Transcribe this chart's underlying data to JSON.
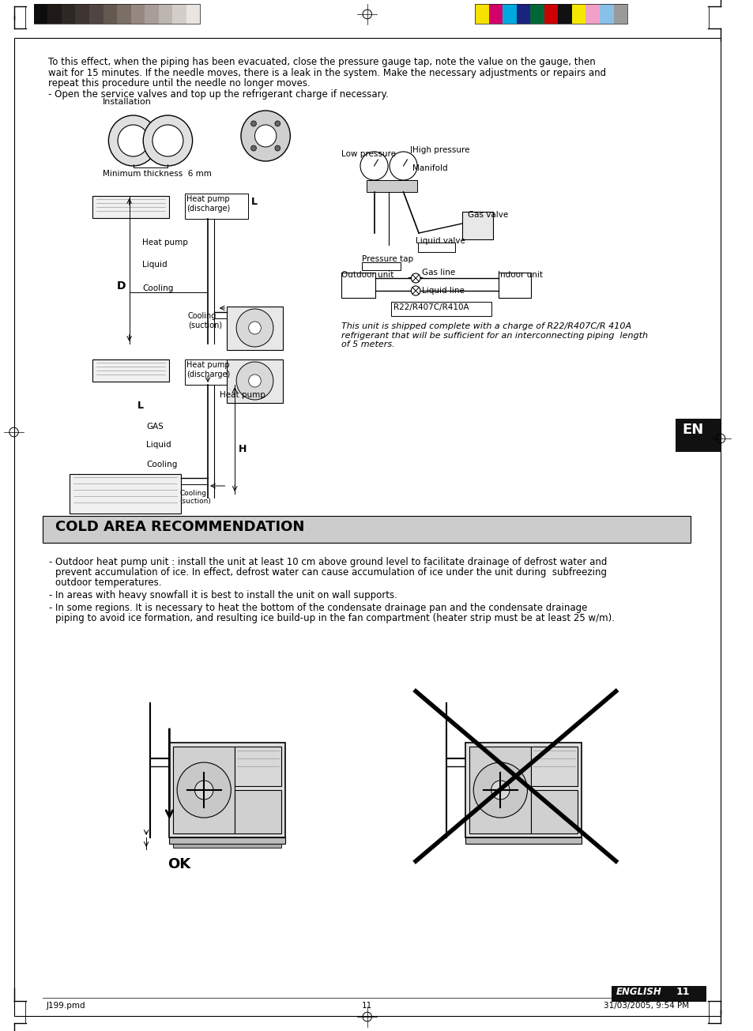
{
  "page_bg": "#ffffff",
  "title_text": "COLD AREA RECOMMENDATION",
  "title_bg": "#cccccc",
  "title_fontsize": 13,
  "body_fontsize": 8.5,
  "bullet_points": [
    "Outdoor heat pump unit : install the unit at least 10 cm above ground level to facilitate drainage of defrost water and\n    prevent accumulation of ice. In effect, defrost water can cause accumulation of ice under the unit during  subfreezing\n    outdoor temperatures.",
    "In areas with heavy snowfall it is best to install the unit on wall supports.",
    "In some regions. It is necessary to heat the bottom of the condensate drainage pan and the condensate drainage\n    piping to avoid ice formation, and resulting ice build-up in the fan compartment (heater strip must be at least 25 w/m)."
  ],
  "ok_label": "OK",
  "top_text": "To this effect, when the piping has been evacuated, close the pressure gauge tap, note the value on the gauge, then\nwait for 15 minutes. If the needle moves, there is a leak in the system. Make the necessary adjustments or repairs and\nrepeat this procedure until the needle no longer moves.\n- Open the service valves and top up the refrigerant charge if necessary.",
  "italic_text": "This unit is shipped complete with a charge of R22/R407C/R 410A\nrefrigerant that will be sufficient for an interconnecting piping  length\nof 5 meters.",
  "footer_left": "J199.pmd",
  "footer_center": "11",
  "footer_right": "31/03/2005, 9:54 PM",
  "footer_label": "ENGLISH",
  "footer_page": "11",
  "en_label": "EN",
  "grayscale_swatches": [
    "#0d0d0d",
    "#1f1a18",
    "#2e2825",
    "#3e3532",
    "#504540",
    "#645850",
    "#7a6e65",
    "#948880",
    "#a89e97",
    "#bdb5af",
    "#d3cec9",
    "#e8e5e2"
  ],
  "color_swatches": [
    "#f5e200",
    "#d4006a",
    "#00a8e0",
    "#1a237e",
    "#006837",
    "#cc0000",
    "#111111",
    "#f5e800",
    "#f0a0c8",
    "#88c0e8",
    "#9a9a9a"
  ],
  "swatch_border": "#111111"
}
